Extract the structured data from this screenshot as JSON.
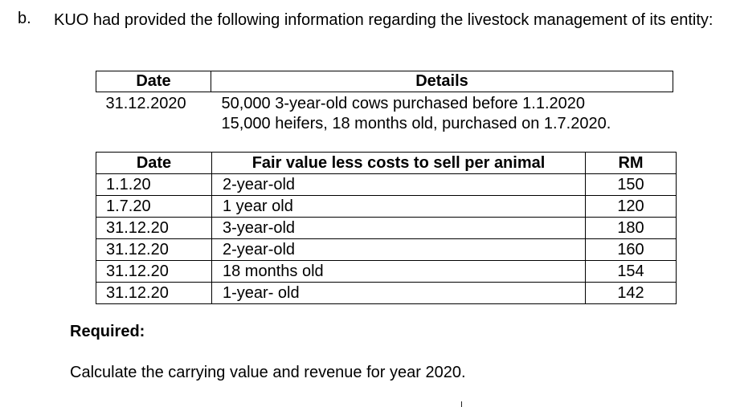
{
  "question": {
    "letter": "b.",
    "text": "KUO had provided the following information regarding the livestock management of its entity:"
  },
  "table1": {
    "headers": [
      "Date",
      "Details"
    ],
    "date": "31.12.2020",
    "details": [
      "50,000 3-year-old cows purchased before 1.1.2020",
      "15,000 heifers, 18 months old, purchased on 1.7.2020."
    ]
  },
  "table2": {
    "headers": [
      "Date",
      "Fair value less costs to sell per animal",
      "RM"
    ],
    "rows": [
      {
        "date": "1.1.20",
        "desc": "2-year-old",
        "rm": "150"
      },
      {
        "date": "1.7.20",
        "desc": "1 year old",
        "rm": "120"
      },
      {
        "date": "31.12.20",
        "desc": "3-year-old",
        "rm": "180"
      },
      {
        "date": "31.12.20",
        "desc": "2-year-old",
        "rm": "160"
      },
      {
        "date": "31.12.20",
        "desc": "18 months old",
        "rm": "154"
      },
      {
        "date": "31.12.20",
        "desc": "1-year- old",
        "rm": "142"
      }
    ]
  },
  "required": {
    "label": "Required:",
    "instruction": "Calculate the carrying value and revenue for year 2020."
  }
}
